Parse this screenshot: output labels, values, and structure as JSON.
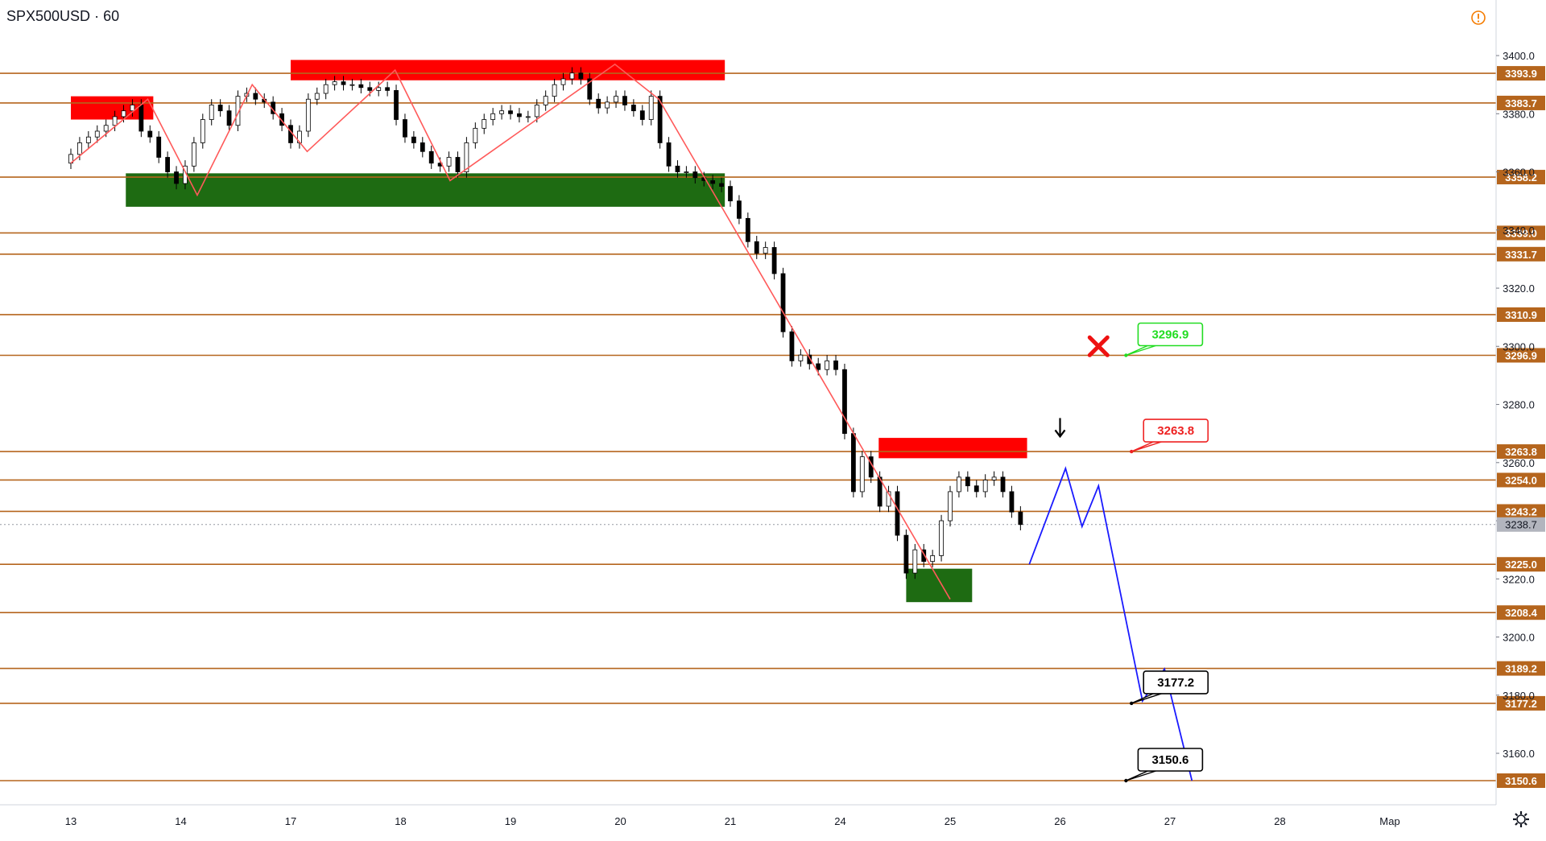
{
  "symbol": "SPX500USD",
  "interval": "60",
  "colors": {
    "level_line": "#b5651d",
    "tag_bg": "#b5651d",
    "tag_text": "#ffffff",
    "current_tag_bg": "#b2b5be",
    "supply_zone": "#ff0000",
    "demand_zone": "#1e6b12",
    "zigzag": "#ff5a5a",
    "forecast": "#1a1aff",
    "candle_up": "#ffffff",
    "candle_down": "#000000",
    "axis_text": "#131722"
  },
  "chart_data": {
    "type": "line",
    "xaxis_labels": [
      "13",
      "14",
      "17",
      "18",
      "19",
      "20",
      "21",
      "24",
      "25",
      "26",
      "27",
      "28",
      "Мар"
    ],
    "yaxis_ticks": [
      3400.0,
      3380.0,
      3360.0,
      3340.0,
      3320.0,
      3300.0,
      3280.0,
      3260.0,
      3240.0,
      3220.0,
      3200.0,
      3180.0,
      3160.0
    ],
    "ylim": [
      3147,
      3405
    ],
    "current_price": 3238.7,
    "levels": [
      3393.9,
      3383.7,
      3358.2,
      3339.0,
      3331.7,
      3310.9,
      3296.9,
      3263.8,
      3254.0,
      3243.2,
      3225.0,
      3208.4,
      3189.2,
      3177.2,
      3150.6
    ],
    "zones": [
      {
        "kind": "supply",
        "x": [
          0.0,
          0.75
        ],
        "y": [
          3378,
          3386
        ]
      },
      {
        "kind": "supply",
        "x": [
          2.0,
          5.95
        ],
        "y": [
          3391.5,
          3398.5
        ]
      },
      {
        "kind": "demand",
        "x": [
          0.5,
          5.95
        ],
        "y": [
          3348,
          3359.5
        ]
      },
      {
        "kind": "supply",
        "x": [
          7.35,
          8.7
        ],
        "y": [
          3261.5,
          3268.5
        ]
      },
      {
        "kind": "demand",
        "x": [
          7.6,
          8.2
        ],
        "y": [
          3212,
          3223.5
        ]
      }
    ],
    "zigzag": {
      "x": [
        0.0,
        0.7,
        1.15,
        1.65,
        2.15,
        2.95,
        3.45,
        4.95,
        5.35,
        8.0
      ],
      "y": [
        3363,
        3385,
        3352,
        3390,
        3367,
        3395,
        3357,
        3397,
        3385,
        3213
      ]
    },
    "forecast": {
      "x": [
        8.72,
        9.05,
        9.2,
        9.35,
        9.75,
        9.95,
        10.2
      ],
      "y": [
        3225,
        3258,
        3238,
        3252,
        3178,
        3189,
        3150.6
      ]
    },
    "callouts": [
      {
        "label": "3296.9",
        "color": "#22dd22",
        "anchor": [
          9.6,
          3296.9
        ]
      },
      {
        "label": "3263.8",
        "color": "#ee2222",
        "anchor": [
          9.65,
          3263.8
        ]
      },
      {
        "label": "3177.2",
        "color": "#000000",
        "anchor": [
          9.65,
          3177.2
        ]
      },
      {
        "label": "3150.6",
        "color": "#000000",
        "anchor": [
          9.6,
          3150.6
        ]
      }
    ],
    "markers": [
      {
        "kind": "cross",
        "x": 9.35,
        "y": 3300,
        "color": "#ee1111"
      },
      {
        "kind": "down-arrow",
        "x": 9.0,
        "y": 3272,
        "color": "#000000"
      }
    ],
    "candles": {
      "x": [
        0.0,
        0.08,
        0.16,
        0.24,
        0.32,
        0.4,
        0.48,
        0.56,
        0.64,
        0.72,
        0.8,
        0.88,
        0.96,
        1.04,
        1.12,
        1.2,
        1.28,
        1.36,
        1.44,
        1.52,
        1.6,
        1.68,
        1.76,
        1.84,
        1.92,
        2.0,
        2.08,
        2.16,
        2.24,
        2.32,
        2.4,
        2.48,
        2.56,
        2.64,
        2.72,
        2.8,
        2.88,
        2.96,
        3.04,
        3.12,
        3.2,
        3.28,
        3.36,
        3.44,
        3.52,
        3.6,
        3.68,
        3.76,
        3.84,
        3.92,
        4.0,
        4.08,
        4.16,
        4.24,
        4.32,
        4.4,
        4.48,
        4.56,
        4.64,
        4.72,
        4.8,
        4.88,
        4.96,
        5.04,
        5.12,
        5.2,
        5.28,
        5.36,
        5.44,
        5.52,
        5.6,
        5.68,
        5.76,
        5.84,
        5.92,
        6.0,
        6.08,
        6.16,
        6.24,
        6.32,
        6.4,
        6.48,
        6.56,
        6.64,
        6.72,
        6.8,
        6.88,
        6.96,
        7.04,
        7.12,
        7.2,
        7.28,
        7.36,
        7.44,
        7.52,
        7.6,
        7.68,
        7.76,
        7.84,
        7.92,
        8.0,
        8.08,
        8.16,
        8.24,
        8.32,
        8.4,
        8.48,
        8.56,
        8.64
      ],
      "open": [
        3363,
        3366,
        3370,
        3372,
        3374,
        3376,
        3379,
        3381,
        3383,
        3374,
        3372,
        3365,
        3360,
        3356,
        3362,
        3370,
        3378,
        3383,
        3381,
        3376,
        3386,
        3387,
        3385,
        3384,
        3380,
        3376,
        3370,
        3374,
        3385,
        3387,
        3390,
        3391,
        3390,
        3390,
        3389,
        3388,
        3389,
        3388,
        3378,
        3372,
        3370,
        3367,
        3363,
        3362,
        3365,
        3360,
        3370,
        3375,
        3378,
        3380,
        3381,
        3380,
        3379,
        3379,
        3383,
        3386,
        3390,
        3392,
        3394,
        3392,
        3385,
        3382,
        3384,
        3386,
        3383,
        3381,
        3378,
        3386,
        3370,
        3362,
        3360,
        3360,
        3358,
        3357,
        3356,
        3355,
        3350,
        3344,
        3336,
        3332,
        3334,
        3325,
        3305,
        3295,
        3297,
        3294,
        3292,
        3295,
        3292,
        3270,
        3250,
        3262,
        3255,
        3245,
        3250,
        3235,
        3222,
        3230,
        3226,
        3228,
        3240,
        3250,
        3255,
        3252,
        3250,
        3254,
        3255,
        3250,
        3243
      ],
      "close": [
        3366,
        3370,
        3372,
        3374,
        3376,
        3379,
        3381,
        3383,
        3374,
        3372,
        3365,
        3360,
        3356,
        3362,
        3370,
        3378,
        3383,
        3381,
        3376,
        3386,
        3387,
        3385,
        3384,
        3380,
        3376,
        3370,
        3374,
        3385,
        3387,
        3390,
        3391,
        3390,
        3390,
        3389,
        3388,
        3389,
        3388,
        3378,
        3372,
        3370,
        3367,
        3363,
        3362,
        3365,
        3360,
        3370,
        3375,
        3378,
        3380,
        3381,
        3380,
        3379,
        3379,
        3383,
        3386,
        3390,
        3392,
        3394,
        3392,
        3385,
        3382,
        3384,
        3386,
        3383,
        3381,
        3378,
        3386,
        3370,
        3362,
        3360,
        3360,
        3358,
        3357,
        3356,
        3355,
        3350,
        3344,
        3336,
        3332,
        3334,
        3325,
        3305,
        3295,
        3297,
        3294,
        3292,
        3295,
        3292,
        3270,
        3250,
        3262,
        3255,
        3245,
        3250,
        3235,
        3222,
        3230,
        3226,
        3228,
        3240,
        3250,
        3255,
        3252,
        3250,
        3254,
        3255,
        3250,
        3243,
        3238.7
      ]
    }
  }
}
